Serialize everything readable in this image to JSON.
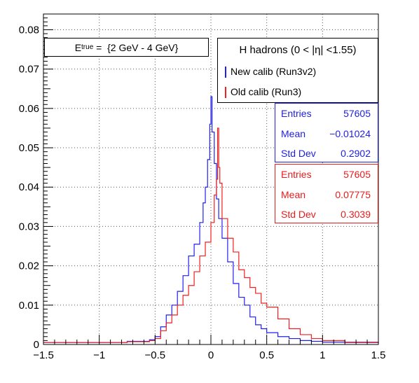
{
  "energy_label": {
    "prefix": "E",
    "sub": "true",
    "value": " =  {2 GeV - 4 GeV}"
  },
  "legend": {
    "title": "H hadrons (0 < |η| <1.55)",
    "entries": [
      {
        "label": "New calib (Run3v2)",
        "color": "#2020ee"
      },
      {
        "label": "Old calib (Run3)",
        "color": "#ee2020"
      }
    ]
  },
  "stats_boxes": [
    {
      "color": "#1f1fe0",
      "rows": [
        {
          "key": "Entries",
          "value": "57605"
        },
        {
          "key": "Mean",
          "value": "−0.01024"
        },
        {
          "key": "Std Dev",
          "value": "0.2902"
        }
      ]
    },
    {
      "color": "#e81c1c",
      "rows": [
        {
          "key": "Entries",
          "value": "57605"
        },
        {
          "key": "Mean",
          "value": "0.07775"
        },
        {
          "key": "Std Dev",
          "value": "0.3039"
        }
      ]
    }
  ],
  "chart_data": {
    "type": "line",
    "title": "",
    "xlabel": "",
    "ylabel": "",
    "xlim": [
      -1.5,
      1.5
    ],
    "ylim": [
      0,
      0.084
    ],
    "grid": true,
    "x_ticks": [
      "−1.5",
      "−1",
      "−0.5",
      "0",
      "0.5",
      "1",
      "1.5"
    ],
    "x_tick_values": [
      -1.5,
      -1,
      -0.5,
      0,
      0.5,
      1,
      1.5
    ],
    "y_ticks": [
      "0",
      "0.01",
      "0.02",
      "0.03",
      "0.04",
      "0.05",
      "0.06",
      "0.07",
      "0.08"
    ],
    "y_tick_values": [
      0,
      0.01,
      0.02,
      0.03,
      0.04,
      0.05,
      0.06,
      0.07,
      0.08
    ],
    "series": [
      {
        "name": "New calib (Run3v2)",
        "color": "#2020ee",
        "x": [
          -1.5,
          -1.25,
          -1.0,
          -0.75,
          -0.55,
          -0.5,
          -0.45,
          -0.4,
          -0.35,
          -0.3,
          -0.25,
          -0.2,
          -0.15,
          -0.1,
          -0.07,
          -0.05,
          -0.03,
          -0.01,
          0.0,
          0.01,
          0.03,
          0.05,
          0.07,
          0.1,
          0.15,
          0.2,
          0.25,
          0.3,
          0.35,
          0.4,
          0.45,
          0.5,
          0.6,
          0.7,
          0.8,
          0.9,
          1.0,
          1.2,
          1.5
        ],
        "y": [
          0.0005,
          0.0005,
          0.0005,
          0.0008,
          0.0012,
          0.002,
          0.0045,
          0.0075,
          0.01,
          0.0135,
          0.0175,
          0.0225,
          0.0255,
          0.031,
          0.036,
          0.04,
          0.047,
          0.056,
          0.063,
          0.054,
          0.046,
          0.037,
          0.032,
          0.027,
          0.021,
          0.0155,
          0.012,
          0.01,
          0.007,
          0.005,
          0.004,
          0.003,
          0.002,
          0.0015,
          0.001,
          0.0008,
          0.0006,
          0.0005,
          0.0004
        ]
      },
      {
        "name": "Old calib (Run3)",
        "color": "#ee2020",
        "x": [
          -1.5,
          -1.25,
          -1.0,
          -0.75,
          -0.55,
          -0.5,
          -0.45,
          -0.4,
          -0.35,
          -0.3,
          -0.25,
          -0.2,
          -0.15,
          -0.1,
          -0.05,
          0.0,
          0.03,
          0.05,
          0.06,
          0.07,
          0.08,
          0.1,
          0.15,
          0.2,
          0.25,
          0.3,
          0.35,
          0.4,
          0.45,
          0.5,
          0.6,
          0.7,
          0.8,
          0.9,
          1.0,
          1.2,
          1.5
        ],
        "y": [
          0.0005,
          0.0005,
          0.0005,
          0.0007,
          0.001,
          0.0015,
          0.0035,
          0.0055,
          0.0075,
          0.01,
          0.0125,
          0.015,
          0.0185,
          0.0225,
          0.026,
          0.031,
          0.038,
          0.042,
          0.055,
          0.045,
          0.041,
          0.032,
          0.027,
          0.0235,
          0.019,
          0.017,
          0.0145,
          0.013,
          0.0105,
          0.0095,
          0.0065,
          0.004,
          0.0025,
          0.0015,
          0.001,
          0.0006,
          0.0004
        ]
      }
    ]
  }
}
